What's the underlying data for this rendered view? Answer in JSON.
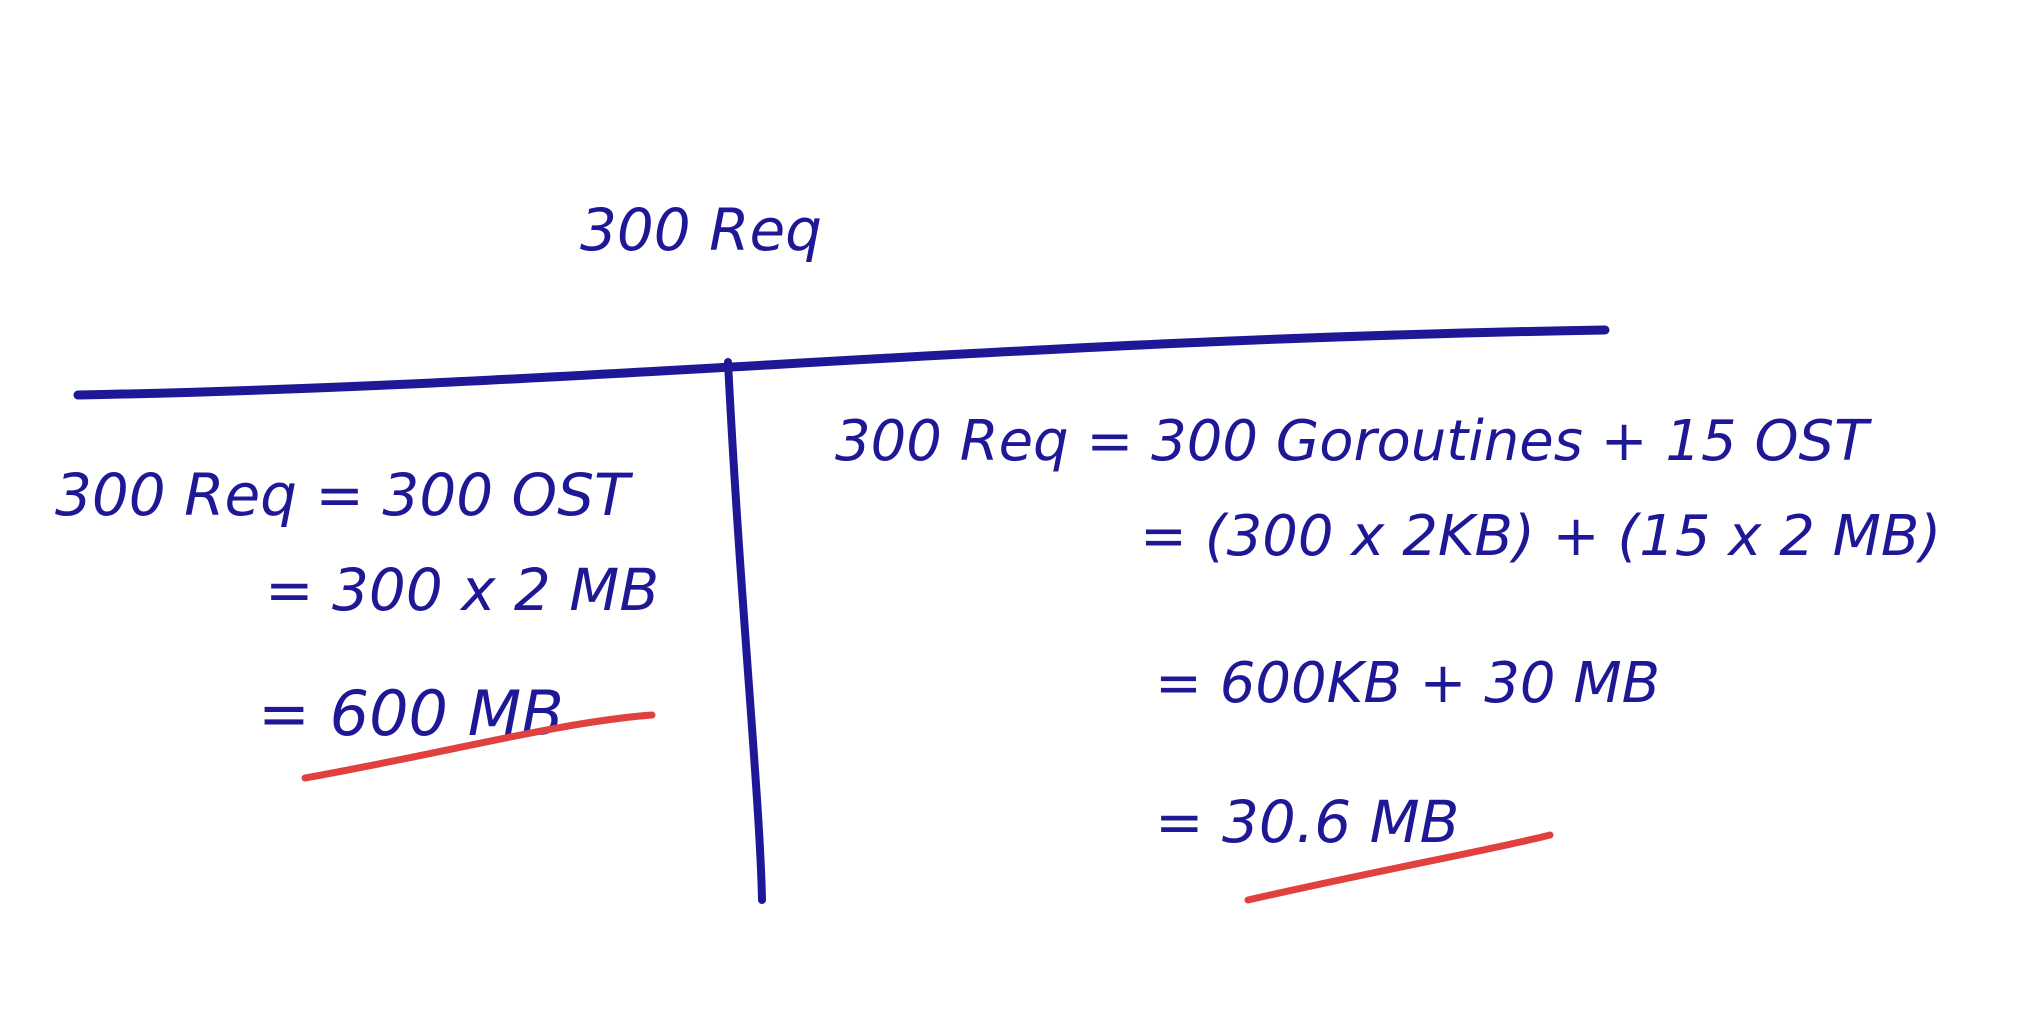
{
  "title": "300 Req",
  "left": {
    "lines": [
      "300 Req = 300 OST",
      "= 300 x 2 MB",
      "= 600 MB"
    ]
  },
  "right": {
    "lines": [
      "300 Req = 300 Goroutines + 15 OST",
      "= (300 x 2KB) + (15 x 2 MB)",
      "= 600KB + 30 MB",
      "= 30.6 MB"
    ]
  },
  "colors": {
    "ink": "#1f1896",
    "highlight": "#e0413f"
  }
}
